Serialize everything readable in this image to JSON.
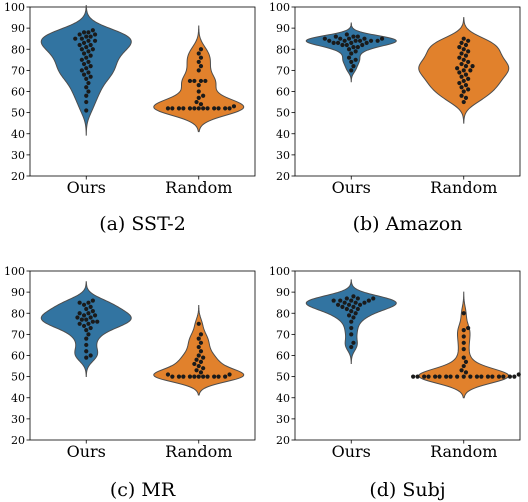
{
  "colors": {
    "ours": "#3274a1",
    "random": "#e1812c",
    "points": "#1a1a1a"
  },
  "chart_data": [
    {
      "type": "violin",
      "caption": "(a)  SST-2",
      "categories": [
        "Ours",
        "Random"
      ],
      "ylim": [
        20,
        100
      ],
      "yticks": [
        "20",
        "30",
        "40",
        "50",
        "60",
        "70",
        "80",
        "90",
        "100"
      ],
      "series": [
        {
          "category": "Ours",
          "values": [
            51,
            55,
            58,
            60,
            62,
            64,
            66,
            67,
            68,
            69,
            70,
            71,
            72,
            73,
            74,
            75,
            76,
            77,
            78,
            79,
            80,
            80,
            81,
            82,
            82,
            83,
            84,
            84,
            85,
            85,
            86,
            86,
            87,
            87,
            88,
            88,
            89
          ]
        },
        {
          "category": "Random",
          "values": [
            52,
            52,
            52,
            52,
            52,
            52,
            52,
            52,
            52,
            52,
            52,
            52,
            52,
            53,
            54,
            55,
            57,
            58,
            60,
            63,
            65,
            65,
            65,
            65,
            70,
            72,
            74,
            76,
            78,
            80
          ]
        }
      ]
    },
    {
      "type": "violin",
      "caption": "(b)  Amazon",
      "categories": [
        "Ours",
        "Random"
      ],
      "ylim": [
        20,
        100
      ],
      "yticks": [
        "20",
        "30",
        "40",
        "50",
        "60",
        "70",
        "80",
        "90",
        "100"
      ],
      "series": [
        {
          "category": "Ours",
          "values": [
            70,
            72,
            74,
            75,
            76,
            78,
            79,
            80,
            81,
            81,
            82,
            82,
            82,
            83,
            83,
            83,
            83,
            84,
            84,
            84,
            84,
            84,
            84,
            85,
            85,
            85,
            85,
            85,
            86,
            86,
            86,
            87
          ]
        },
        {
          "category": "Random",
          "values": [
            55,
            57,
            58,
            60,
            61,
            62,
            63,
            64,
            65,
            66,
            67,
            68,
            69,
            70,
            70,
            71,
            72,
            72,
            73,
            74,
            75,
            76,
            77,
            78,
            79,
            80,
            81,
            82,
            83,
            84,
            85
          ]
        }
      ]
    },
    {
      "type": "violin",
      "caption": "(c)  MR",
      "categories": [
        "Ours",
        "Random"
      ],
      "ylim": [
        20,
        100
      ],
      "yticks": [
        "20",
        "30",
        "40",
        "50",
        "60",
        "70",
        "80",
        "90",
        "100"
      ],
      "series": [
        {
          "category": "Ours",
          "values": [
            59,
            60,
            62,
            65,
            68,
            70,
            72,
            73,
            74,
            75,
            75,
            76,
            76,
            77,
            77,
            78,
            78,
            79,
            79,
            80,
            80,
            81,
            82,
            83,
            84,
            85,
            85,
            86
          ]
        },
        {
          "category": "Random",
          "values": [
            50,
            50,
            50,
            50,
            50,
            50,
            50,
            50,
            50,
            50,
            50,
            51,
            51,
            52,
            53,
            54,
            55,
            56,
            57,
            58,
            59,
            60,
            62,
            64,
            66,
            68,
            70,
            75
          ]
        }
      ]
    },
    {
      "type": "violin",
      "caption": "(d)  Subj",
      "categories": [
        "Ours",
        "Random"
      ],
      "ylim": [
        20,
        100
      ],
      "yticks": [
        "20",
        "30",
        "40",
        "50",
        "60",
        "70",
        "80",
        "90",
        "100"
      ],
      "series": [
        {
          "category": "Ours",
          "values": [
            64,
            66,
            70,
            73,
            76,
            78,
            79,
            80,
            81,
            82,
            82,
            83,
            83,
            84,
            84,
            84,
            85,
            85,
            85,
            86,
            86,
            86,
            86,
            87,
            87,
            87,
            88
          ]
        },
        {
          "category": "Random",
          "values": [
            50,
            50,
            50,
            50,
            50,
            50,
            50,
            50,
            50,
            50,
            50,
            50,
            50,
            50,
            50,
            50,
            50,
            50,
            50,
            51,
            52,
            53,
            55,
            57,
            59,
            63,
            66,
            69,
            72,
            73,
            80
          ]
        }
      ]
    }
  ]
}
